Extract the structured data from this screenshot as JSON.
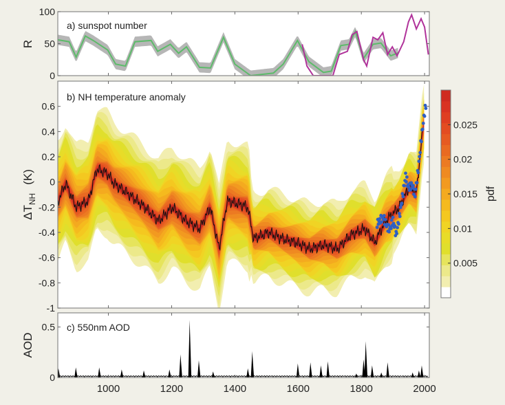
{
  "chart_data": [
    {
      "type": "line",
      "panel_label": "a) sunspot number",
      "ylabel": "R",
      "xlim": [
        840,
        2015
      ],
      "ylim": [
        0,
        100
      ],
      "yticks": [
        0,
        50,
        100
      ],
      "series": [
        {
          "color": "#5dbb6a",
          "band_color": "#a9a9a9",
          "x": [
            840,
            876,
            898,
            927,
            952,
            998,
            1023,
            1054,
            1084,
            1135,
            1156,
            1196,
            1222,
            1247,
            1288,
            1323,
            1364,
            1400,
            1450,
            1522,
            1553,
            1598,
            1634,
            1680,
            1705,
            1735,
            1761,
            1781,
            1807,
            1837,
            1862,
            1893,
            1918
          ],
          "y": [
            56,
            53,
            29,
            62,
            55,
            40,
            18,
            15,
            53,
            55,
            38,
            49,
            35,
            45,
            13,
            12,
            60,
            18,
            0,
            4,
            18,
            55,
            22,
            5,
            7,
            47,
            49,
            69,
            27,
            49,
            51,
            31,
            36
          ]
        },
        {
          "color": "#b0329a",
          "x": [
            1613,
            1628,
            1648,
            1710,
            1730,
            1756,
            1771,
            1786,
            1807,
            1817,
            1837,
            1852,
            1868,
            1883,
            1898,
            1913,
            1934,
            1949,
            1959,
            1974,
            1989,
            2000,
            2012
          ],
          "y": [
            49,
            15,
            0,
            0,
            33,
            38,
            64,
            69,
            25,
            15,
            60,
            56,
            67,
            33,
            45,
            31,
            53,
            84,
            95,
            73,
            89,
            76,
            33
          ]
        }
      ]
    },
    {
      "type": "area",
      "panel_label": "b) NH temperature anomaly",
      "ylabel": "ΔT",
      "ylabel_sub": "NH",
      "ylabel_unit": "(K)",
      "xlim": [
        840,
        2015
      ],
      "ylim": [
        -1,
        0.8
      ],
      "yticks": [
        -1,
        -0.8,
        -0.6,
        -0.4,
        -0.2,
        0,
        0.2,
        0.4,
        0.6
      ],
      "median": {
        "color": "#111111",
        "x": [
          841,
          865,
          898,
          937,
          963,
          996,
          1017,
          1061,
          1115,
          1159,
          1202,
          1246,
          1289,
          1322,
          1350,
          1376,
          1420,
          1441,
          1459,
          1507,
          1550,
          1593,
          1637,
          1680,
          1724,
          1767,
          1811,
          1843,
          1876,
          1920,
          1952,
          1974,
          1996
        ],
        "y": [
          -0.15,
          -0.01,
          -0.2,
          -0.15,
          0.1,
          0.07,
          -0.01,
          -0.09,
          -0.2,
          -0.31,
          -0.2,
          -0.31,
          -0.37,
          -0.2,
          -0.53,
          -0.15,
          -0.18,
          -0.2,
          -0.45,
          -0.4,
          -0.45,
          -0.48,
          -0.53,
          -0.5,
          -0.53,
          -0.42,
          -0.37,
          -0.48,
          -0.31,
          -0.2,
          -0.04,
          -0.09,
          0.46
        ]
      },
      "instrumental": {
        "color": "#2f5fc4",
        "x": [
          1850,
          1860,
          1870,
          1880,
          1890,
          1900,
          1910,
          1920,
          1930,
          1940,
          1950,
          1960,
          1970,
          1980,
          1990,
          2000,
          2005
        ],
        "y": [
          -0.33,
          -0.3,
          -0.28,
          -0.35,
          -0.38,
          -0.3,
          -0.42,
          -0.28,
          -0.12,
          0.05,
          -0.05,
          -0.02,
          -0.1,
          0.1,
          0.35,
          0.55,
          0.62
        ]
      },
      "colorbar": {
        "label": "pdf",
        "range": [
          0,
          0.03
        ],
        "ticks": [
          "0.005",
          "0.01",
          "0.015",
          "0.02",
          "0.025"
        ],
        "tick_values": [
          0.005,
          0.01,
          0.015,
          0.02,
          0.025
        ],
        "colors": [
          "#ffffff",
          "#f2eeb0",
          "#ece98a",
          "#e6e45c",
          "#e0df2c",
          "#e8dc28",
          "#f0d424",
          "#f4c820",
          "#f5ba1e",
          "#f4aa1f",
          "#f29a20",
          "#ef8a21",
          "#ec7a22",
          "#e96a22",
          "#e65a22",
          "#e34c22",
          "#df3e22",
          "#d93322",
          "#cf2b20"
        ]
      }
    },
    {
      "type": "bar",
      "panel_label": "c) 550nm AOD",
      "ylabel": "AOD",
      "xlim": [
        840,
        2015
      ],
      "ylim": [
        0,
        0.64
      ],
      "yticks": [
        0,
        0.5
      ],
      "xticks": [
        1000,
        1200,
        1400,
        1600,
        1800,
        2000
      ],
      "x": [
        842,
        897,
        971,
        1042,
        1112,
        1193,
        1228,
        1257,
        1286,
        1331,
        1441,
        1455,
        1599,
        1639,
        1672,
        1694,
        1784,
        1807,
        1814,
        1834,
        1863,
        1883,
        1962,
        1982,
        1991
      ],
      "values": [
        0.09,
        0.1,
        0.1,
        0.08,
        0.07,
        0.08,
        0.23,
        0.57,
        0.17,
        0.06,
        0.09,
        0.26,
        0.14,
        0.15,
        0.12,
        0.16,
        0.04,
        0.18,
        0.36,
        0.12,
        0.05,
        0.15,
        0.05,
        0.07,
        0.12
      ],
      "color": "#000000"
    }
  ]
}
